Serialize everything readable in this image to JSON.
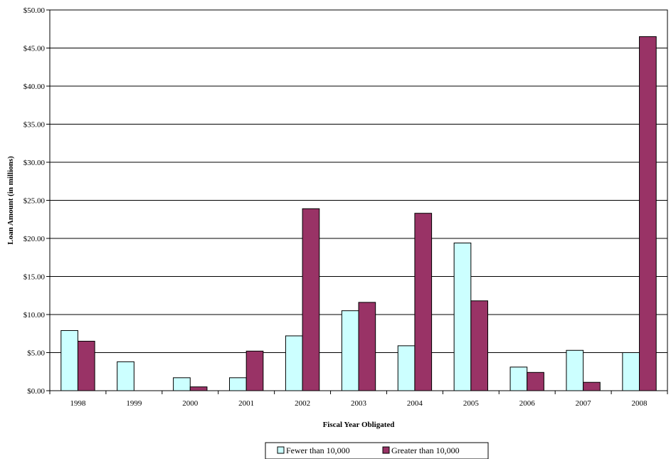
{
  "chart_data": {
    "type": "bar",
    "title": "",
    "xlabel": "Fiscal Year Obligated",
    "ylabel": "Loan Amount (in millions)",
    "ylim": [
      0,
      50
    ],
    "y_tick_values": [
      0,
      5,
      10,
      15,
      20,
      25,
      30,
      35,
      40,
      45,
      50
    ],
    "y_tick_labels": [
      "$0.00",
      "$5.00",
      "$10.00",
      "$15.00",
      "$20.00",
      "$25.00",
      "$30.00",
      "$35.00",
      "$40.00",
      "$45.00",
      "$50.00"
    ],
    "categories": [
      "1998",
      "1999",
      "2000",
      "2001",
      "2002",
      "2003",
      "2004",
      "2005",
      "2006",
      "2007",
      "2008"
    ],
    "series": [
      {
        "name": "Fewer than 10,000",
        "color": "#ccffff",
        "values": [
          7.9,
          3.8,
          1.7,
          1.7,
          7.2,
          10.5,
          5.9,
          19.4,
          3.1,
          5.3,
          5.0
        ]
      },
      {
        "name": "Greater than 10,000",
        "color": "#993366",
        "values": [
          6.5,
          0.0,
          0.5,
          5.2,
          23.9,
          11.6,
          23.3,
          11.8,
          2.4,
          1.1,
          46.5
        ]
      }
    ],
    "grid": true,
    "legend_position": "bottom"
  }
}
